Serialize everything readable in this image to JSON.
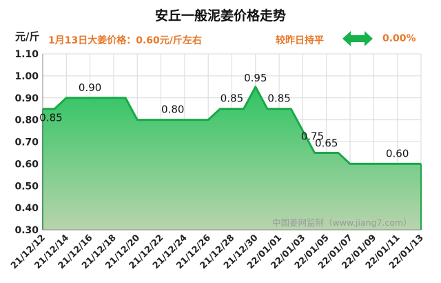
{
  "header": {
    "title": "安丘一般泥姜价格走势",
    "unit": "元/斤",
    "subtitle": "1月13日大姜价格：0.60元/斤左右",
    "status": "较昨日持平",
    "change": "0.00%"
  },
  "watermark": "中国姜网监制（www.jiang7.com）",
  "colors": {
    "line": "#1aa84a",
    "fill_top": "#2fc462",
    "fill_bottom": "#b8d4ad",
    "accent": "#e8782a",
    "arrow": "#17b24a"
  },
  "icons": {
    "trend": "double-arrow-icon"
  },
  "chart_data": {
    "type": "area",
    "title": "安丘一般泥姜价格走势",
    "ylabel": "元/斤",
    "xlabel": "",
    "ylim": [
      0.3,
      1.1
    ],
    "yticks": [
      "0.30",
      "0.40",
      "0.50",
      "0.60",
      "0.70",
      "0.80",
      "0.90",
      "1.00",
      "1.10"
    ],
    "categories": [
      "21/12/12",
      "21/12/13",
      "21/12/14",
      "21/12/15",
      "21/12/16",
      "21/12/17",
      "21/12/18",
      "21/12/19",
      "21/12/20",
      "21/12/21",
      "21/12/22",
      "21/12/23",
      "21/12/24",
      "21/12/25",
      "21/12/26",
      "21/12/27",
      "21/12/28",
      "21/12/29",
      "21/12/30",
      "21/12/31",
      "22/01/01",
      "22/01/02",
      "22/01/03",
      "22/01/04",
      "22/01/05",
      "22/01/06",
      "22/01/07",
      "22/01/08",
      "22/01/09",
      "22/01/10",
      "22/01/11",
      "22/01/12",
      "22/01/13"
    ],
    "tick_labels": [
      "21/12/12",
      "21/12/14",
      "21/12/16",
      "21/12/18",
      "21/12/20",
      "21/12/22",
      "21/12/24",
      "21/12/26",
      "21/12/28",
      "21/12/30",
      "22/01/01",
      "22/01/03",
      "22/01/05",
      "22/01/07",
      "22/01/09",
      "22/01/11",
      "22/01/13"
    ],
    "values": [
      0.85,
      0.85,
      0.9,
      0.9,
      0.9,
      0.9,
      0.9,
      0.9,
      0.8,
      0.8,
      0.8,
      0.8,
      0.8,
      0.8,
      0.8,
      0.85,
      0.85,
      0.85,
      0.95,
      0.85,
      0.85,
      0.85,
      0.75,
      0.65,
      0.65,
      0.65,
      0.6,
      0.6,
      0.6,
      0.6,
      0.6,
      0.6,
      0.6
    ],
    "data_labels": [
      {
        "index": 0,
        "text": "0.85"
      },
      {
        "index": 4,
        "text": "0.90"
      },
      {
        "index": 11,
        "text": "0.80"
      },
      {
        "index": 16,
        "text": "0.85"
      },
      {
        "index": 18,
        "text": "0.95"
      },
      {
        "index": 20,
        "text": "0.85"
      },
      {
        "index": 22,
        "text": "0.75"
      },
      {
        "index": 24,
        "text": "0.65"
      },
      {
        "index": 30,
        "text": "0.60"
      }
    ],
    "grid": true
  }
}
